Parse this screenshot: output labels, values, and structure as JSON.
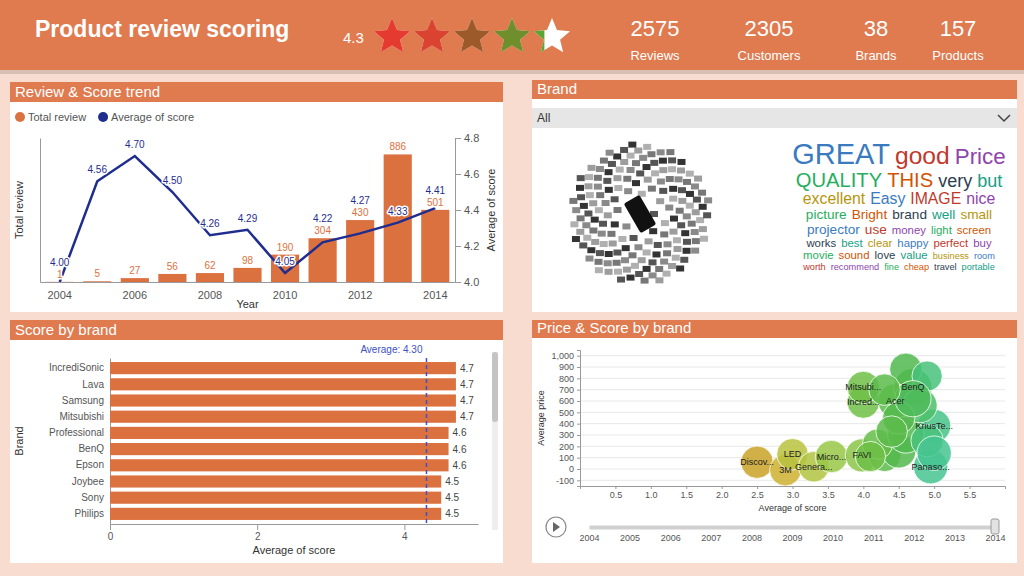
{
  "header": {
    "title": "Product review scoring",
    "rating": 4.3,
    "rating_max": 5,
    "star_colors": [
      "#e53a2f",
      "#d9432f",
      "#9c5a2a",
      "#6e8f2c",
      "#5aa533"
    ],
    "kpis": [
      {
        "value": 2575,
        "label": "Reviews"
      },
      {
        "value": 2305,
        "label": "Customers"
      },
      {
        "value": 38,
        "label": "Brands"
      },
      {
        "value": 157,
        "label": "Products"
      }
    ]
  },
  "brand_panel": {
    "title": "Brand",
    "filter": "All",
    "words": [
      {
        "text": "GREAT",
        "weight": 10
      },
      {
        "text": "good",
        "weight": 8
      },
      {
        "text": "Price",
        "weight": 7
      },
      {
        "text": "QUALITY",
        "weight": 6
      },
      {
        "text": "THIS",
        "weight": 6
      },
      {
        "text": "very",
        "weight": 5
      },
      {
        "text": "but",
        "weight": 5
      },
      {
        "text": "excellent",
        "weight": 4
      },
      {
        "text": "Easy",
        "weight": 4
      },
      {
        "text": "IMAGE",
        "weight": 4
      },
      {
        "text": "nice",
        "weight": 4
      },
      {
        "text": "picture",
        "weight": 3
      },
      {
        "text": "Bright",
        "weight": 3
      },
      {
        "text": "brand",
        "weight": 3
      },
      {
        "text": "well",
        "weight": 3
      },
      {
        "text": "small",
        "weight": 3
      },
      {
        "text": "projector",
        "weight": 3
      },
      {
        "text": "use",
        "weight": 3
      },
      {
        "text": "money",
        "weight": 2
      },
      {
        "text": "light",
        "weight": 2
      },
      {
        "text": "screen",
        "weight": 2
      },
      {
        "text": "works",
        "weight": 2
      },
      {
        "text": "best",
        "weight": 2
      },
      {
        "text": "clear",
        "weight": 2
      },
      {
        "text": "happy",
        "weight": 2
      },
      {
        "text": "perfect",
        "weight": 2
      },
      {
        "text": "buy",
        "weight": 2
      },
      {
        "text": "movie",
        "weight": 2
      },
      {
        "text": "sound",
        "weight": 2
      },
      {
        "text": "love",
        "weight": 2
      },
      {
        "text": "value",
        "weight": 2
      },
      {
        "text": "business",
        "weight": 1
      },
      {
        "text": "room",
        "weight": 1
      },
      {
        "text": "worth",
        "weight": 1
      },
      {
        "text": "recommend",
        "weight": 1
      },
      {
        "text": "fine",
        "weight": 1
      },
      {
        "text": "cheap",
        "weight": 1
      },
      {
        "text": "travel",
        "weight": 1
      },
      {
        "text": "portable",
        "weight": 1
      }
    ]
  },
  "chart_data": [
    {
      "type": "bar",
      "title": "Review & Score trend",
      "categories": [
        "2004",
        null,
        "2006",
        null,
        "2008",
        null,
        "2010",
        null,
        "2012",
        null,
        "2014"
      ],
      "xlabel": "Year",
      "ylabel": "Total review",
      "y2label": "Average of score",
      "ylim": [
        0,
        1000
      ],
      "yticks": [],
      "y2lim": [
        4.0,
        4.8
      ],
      "y2ticks": [
        {
          "value": 4,
          "label": "4.0"
        },
        4.2,
        4.4,
        4.6,
        4.8
      ],
      "legend": "top-left",
      "data_labels": true,
      "series": [
        {
          "name": "Total review",
          "type": "bar",
          "color": "#dc7140",
          "values": [
            1,
            5,
            27,
            56,
            62,
            98,
            190,
            304,
            430,
            886,
            501
          ]
        },
        {
          "name": "Average of score",
          "type": "line",
          "axis": "y2",
          "color": "#1f2d8f",
          "marker": "none",
          "values": [
            4.0,
            4.56,
            4.7,
            4.5,
            4.26,
            4.29,
            4.05,
            4.22,
            4.27,
            4.33,
            4.41
          ],
          "value_labels": [
            "4.00",
            "4.56",
            "4.70",
            "4.50",
            "4.26",
            "4.29",
            "4.05",
            "4.22",
            "4.27",
            "4.33",
            "4.41"
          ]
        }
      ]
    },
    {
      "type": "bar",
      "orientation": "horizontal",
      "title": "Score by brand",
      "categories": [
        "IncrediSonic",
        "Lava",
        "Samsung",
        "Mitsubishi",
        "Professional",
        "BenQ",
        "Epson",
        "Joybee",
        "Sony",
        "Philips"
      ],
      "values": [
        4.7,
        4.7,
        4.7,
        4.7,
        4.6,
        4.6,
        4.6,
        4.5,
        4.5,
        4.5
      ],
      "color": "#dc7140",
      "xlim": [
        0,
        5
      ],
      "xticks": [
        0,
        2,
        4
      ],
      "xlabel": "Average of score",
      "ylabel": "Brand",
      "data_labels": true,
      "average": {
        "value": 4.3,
        "label": "Average: 4.30",
        "color": "#4050c8",
        "line_style": "dashed"
      }
    },
    {
      "type": "scatter",
      "title": "Price & Score by brand",
      "xlabel": "Average of score",
      "ylabel": "Average price",
      "xlim": [
        0,
        6
      ],
      "xticks": [
        0.5,
        {
          "value": 1,
          "label": "1.0"
        },
        1.5,
        {
          "value": 2,
          "label": "2.0"
        },
        2.5,
        {
          "value": 3,
          "label": "3.0"
        },
        3.5,
        {
          "value": 4,
          "label": "4.0"
        },
        4.5,
        {
          "value": 5,
          "label": "5.0"
        },
        5.5
      ],
      "ylim": [
        -150,
        1050
      ],
      "yticks": [
        -100,
        0,
        100,
        200,
        300,
        400,
        500,
        600,
        700,
        800,
        900,
        {
          "value": 1000,
          "label": "1,000"
        }
      ],
      "grid": true,
      "x": [
        2.5,
        2.9,
        3.0,
        3.3,
        3.55,
        3.98,
        4.0,
        4.0,
        4.45,
        4.7,
        5.0,
        4.95,
        4.3,
        4.5,
        4.2,
        4.6,
        4.8,
        4.6,
        4.9,
        4.5,
        4.1,
        4.9,
        5.0,
        4.4,
        4.7,
        4.3
      ],
      "values": [
        60,
        -10,
        130,
        20,
        110,
        120,
        590,
        720,
        600,
        720,
        380,
        20,
        120,
        160,
        220,
        300,
        560,
        880,
        820,
        450,
        110,
        250,
        140,
        330,
        620,
        700
      ],
      "sizes": [
        40,
        38,
        38,
        36,
        40,
        42,
        40,
        40,
        45,
        55,
        42,
        45,
        40,
        45,
        35,
        50,
        45,
        40,
        35,
        40,
        35,
        40,
        45,
        38,
        50,
        38
      ],
      "labels": [
        "Discov...",
        "3M",
        "LED",
        "Genera...",
        "Micro...",
        "FAVI",
        "Incred...",
        "Mitsubi...",
        "Acer",
        "BenQ",
        "KriusTe...",
        "Panaso...",
        null,
        null,
        null,
        null,
        null,
        null,
        null,
        null,
        null,
        null,
        null,
        null,
        null,
        null
      ],
      "colors": [
        "#c9a227",
        "#cdb030",
        "#b9c23e",
        "#b2c441",
        "#98c746",
        "#8cc548",
        "#6fbf46",
        "#6fbf46",
        "#5cbb4a",
        "#4fb84f",
        "#48c488",
        "#45c490",
        "#5cbb4a",
        "#54b84c",
        "#66bd47",
        "#4fb84f",
        "#4cbf6a",
        "#50b94e",
        "#48c27a",
        "#54b84c",
        "#6fbf46",
        "#48c27a",
        "#45c490",
        "#5cbb4a",
        "#4fbb5a",
        "#5cbb4a"
      ],
      "play_axis": {
        "ticks": [
          2004,
          2005,
          2006,
          2007,
          2008,
          2009,
          2010,
          2011,
          2012,
          2013,
          2014
        ],
        "value": 2014
      }
    }
  ]
}
